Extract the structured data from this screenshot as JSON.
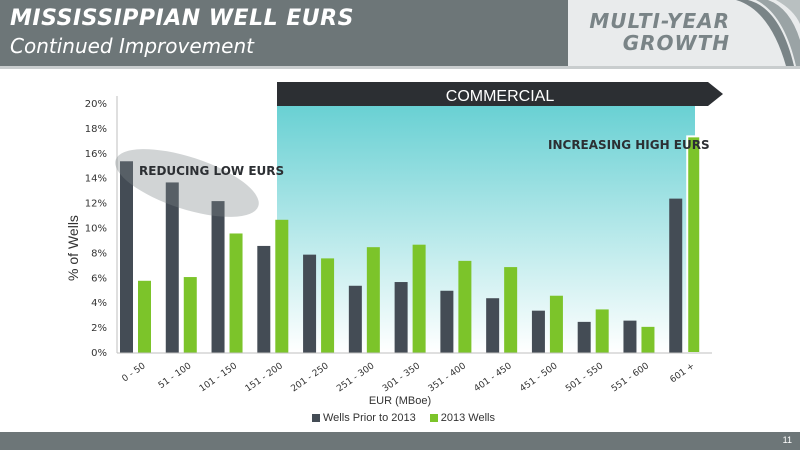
{
  "header": {
    "title": "MISSISSIPPIAN WELL EURS",
    "subtitle": "Continued Improvement",
    "badge_line1": "MULTI-YEAR",
    "badge_line2": "GROWTH"
  },
  "footer": {
    "page_number": "11"
  },
  "colors": {
    "wells_prior": "#444c55",
    "wells_2013": "#7cc42a",
    "header": "#6d7678",
    "commercial_band": "#27bcc0"
  },
  "chart_data": {
    "type": "bar",
    "categories": [
      "0 - 50",
      "51 - 100",
      "101 - 150",
      "151 - 200",
      "201 - 250",
      "251 - 300",
      "301 - 350",
      "351 - 400",
      "401 - 450",
      "451 - 500",
      "501 - 550",
      "551 - 600",
      "601 +"
    ],
    "series": [
      {
        "name": "Wells Prior to 2013",
        "color": "#444c55",
        "values": [
          15.4,
          13.7,
          12.2,
          8.6,
          7.9,
          5.4,
          5.7,
          5.0,
          4.4,
          3.4,
          2.5,
          2.6,
          12.4
        ]
      },
      {
        "name": "2013 Wells",
        "color": "#7cc42a",
        "values": [
          5.8,
          6.1,
          9.6,
          10.7,
          7.6,
          8.5,
          8.7,
          7.4,
          6.9,
          4.6,
          3.5,
          2.1,
          17.4
        ]
      }
    ],
    "xlabel": "EUR (MBoe)",
    "ylabel": "% of Wells",
    "ylim": [
      0,
      20
    ],
    "yticks": [
      "0%",
      "2%",
      "4%",
      "6%",
      "8%",
      "10%",
      "12%",
      "14%",
      "16%",
      "18%",
      "20%"
    ],
    "y_units": "%",
    "grid": false,
    "legend_position": "bottom",
    "annotations": {
      "commercial": "COMMERCIAL",
      "low": "REDUCING LOW EURS",
      "high": "INCREASING HIGH EURS"
    }
  }
}
